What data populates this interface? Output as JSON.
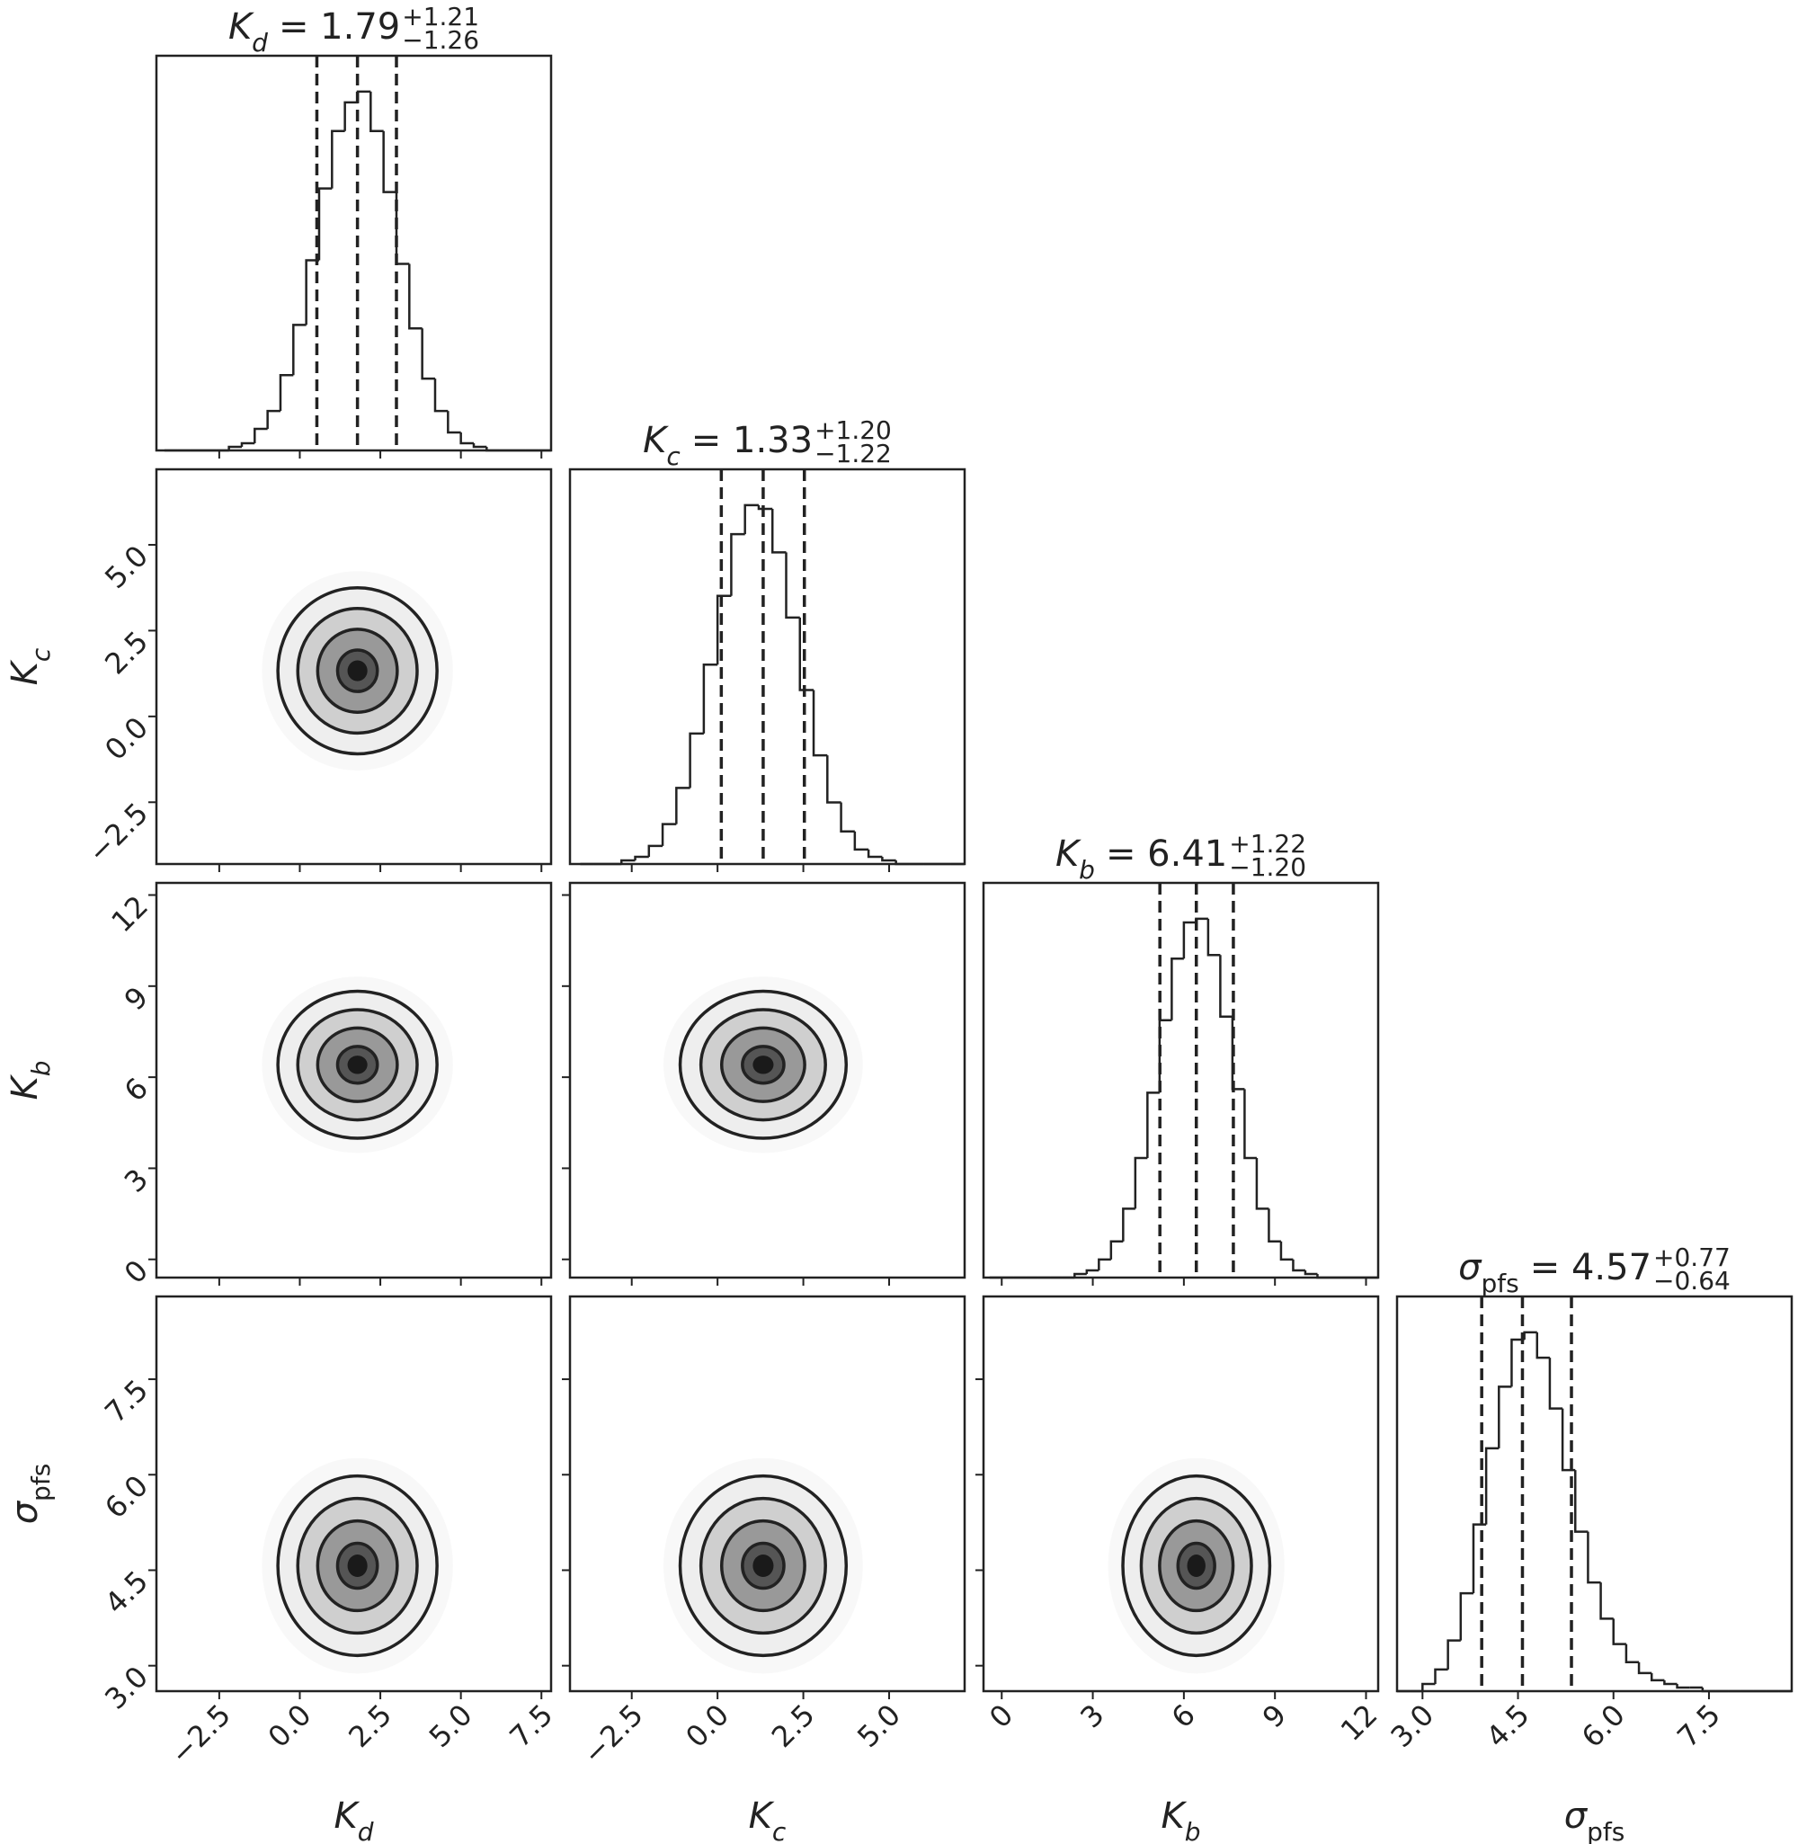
{
  "chart_data": {
    "type": "corner",
    "grid": false,
    "params": [
      {
        "symbol": "K",
        "subscript": "d",
        "subscript_italic": true,
        "median": 1.79,
        "median_label": "= 1.79",
        "plus": 1.21,
        "plus_label": "+1.21",
        "minus": 1.26,
        "minus_label": "−1.26",
        "lim": [
          -4.45,
          7.8
        ],
        "ticks": [
          {
            "value": -2.5,
            "label": "−2.5"
          },
          {
            "value": 0,
            "label": "0.0"
          },
          2.5,
          {
            "value": 5,
            "label": "5.0"
          },
          7.5
        ],
        "bins": [
          -4.2,
          -3.8,
          -3.4,
          -3.0,
          -2.6,
          -2.2,
          -1.8,
          -1.4,
          -1.0,
          -0.6,
          -0.2,
          0.2,
          0.6,
          1.0,
          1.4,
          1.8,
          2.2,
          2.6,
          3.0,
          3.4,
          3.8,
          4.2,
          4.6,
          5.0,
          5.4,
          5.8,
          6.2,
          6.6,
          7.0,
          7.4,
          7.8
        ],
        "counts": [
          0,
          0,
          0,
          0,
          0,
          1,
          2,
          6,
          11,
          21,
          35,
          53,
          73,
          89,
          97,
          100,
          89,
          72,
          52,
          34,
          20,
          11,
          5,
          2,
          1,
          0,
          0,
          0,
          0,
          0
        ]
      },
      {
        "symbol": "K",
        "subscript": "c",
        "subscript_italic": true,
        "median": 1.33,
        "median_label": "= 1.33",
        "plus": 1.2,
        "plus_label": "+1.20",
        "minus": 1.22,
        "minus_label": "−1.22",
        "lim": [
          -4.3,
          7.2
        ],
        "ticks": [
          {
            "value": -2.5,
            "label": "−2.5"
          },
          {
            "value": 0,
            "label": "0.0"
          },
          2.5,
          {
            "value": 5,
            "label": "5.0"
          }
        ],
        "bins": [
          -4.0,
          -3.6,
          -3.2,
          -2.8,
          -2.4,
          -2.0,
          -1.6,
          -1.2,
          -0.8,
          -0.4,
          0.0,
          0.4,
          0.8,
          1.2,
          1.6,
          2.0,
          2.4,
          2.8,
          3.2,
          3.6,
          4.0,
          4.4,
          4.8,
          5.2,
          5.6,
          6.0,
          6.4,
          6.8,
          7.2
        ],
        "counts": [
          0,
          0,
          0,
          1,
          2,
          5,
          11,
          21,
          36,
          55,
          74,
          91,
          99,
          98,
          86,
          68,
          48,
          30,
          17,
          9,
          4,
          2,
          1,
          0,
          0,
          0,
          0,
          0
        ]
      },
      {
        "symbol": "K",
        "subscript": "b",
        "subscript_italic": true,
        "median": 6.41,
        "median_label": "= 6.41",
        "plus": 1.22,
        "plus_label": "+1.22",
        "minus": 1.2,
        "minus_label": "−1.20",
        "lim": [
          -0.6,
          12.4
        ],
        "ticks": [
          0,
          3,
          6,
          9,
          12
        ],
        "bins": [
          -0.4,
          0.0,
          0.4,
          0.8,
          1.2,
          1.6,
          2.0,
          2.4,
          2.8,
          3.2,
          3.6,
          4.0,
          4.4,
          4.8,
          5.2,
          5.6,
          6.0,
          6.4,
          6.8,
          7.2,
          7.6,
          8.0,
          8.4,
          8.8,
          9.2,
          9.6,
          10.0,
          10.4,
          10.8,
          11.2,
          11.6,
          12.0,
          12.4
        ],
        "counts": [
          0,
          0,
          0,
          0,
          0,
          0,
          0,
          1,
          2,
          5,
          10,
          19,
          33,
          51,
          71,
          88,
          98,
          99,
          89,
          72,
          52,
          33,
          19,
          10,
          5,
          2,
          1,
          0,
          0,
          0,
          0,
          0
        ]
      },
      {
        "symbol": "σ",
        "subscript": "pfs",
        "subscript_italic": false,
        "median": 4.57,
        "median_label": "= 4.57",
        "plus": 0.77,
        "plus_label": "+0.77",
        "minus": 0.64,
        "minus_label": "−0.64",
        "lim": [
          2.6,
          8.8
        ],
        "ticks": [
          {
            "value": 3,
            "label": "3.0"
          },
          4.5,
          {
            "value": 6,
            "label": "6.0"
          },
          7.5
        ],
        "bins": [
          2.6,
          2.8,
          3.0,
          3.2,
          3.4,
          3.6,
          3.8,
          4.0,
          4.2,
          4.4,
          4.6,
          4.8,
          5.0,
          5.2,
          5.4,
          5.6,
          5.8,
          6.0,
          6.2,
          6.4,
          6.6,
          6.8,
          7.0,
          7.2,
          7.4,
          7.6,
          7.8,
          8.0,
          8.2,
          8.4,
          8.6,
          8.8
        ],
        "counts": [
          0,
          0,
          2,
          6,
          14,
          27,
          46,
          67,
          84,
          97,
          99,
          92,
          78,
          61,
          44,
          30,
          20,
          13,
          8,
          5,
          3,
          2,
          1,
          1,
          0,
          0,
          0,
          0,
          0,
          0,
          0
        ]
      }
    ]
  }
}
